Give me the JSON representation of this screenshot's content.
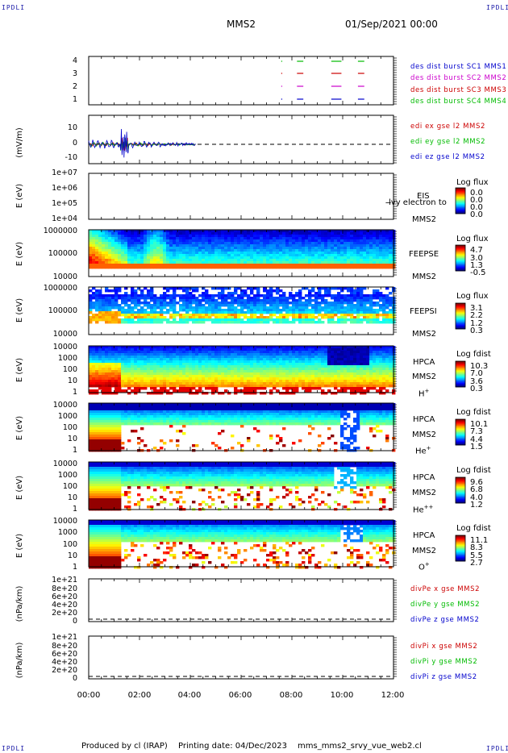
{
  "header": {
    "corner_tl": "IPDLI",
    "corner_tr": "IPDLI",
    "corner_bl": "IPDLI",
    "corner_br": "IPDLI",
    "spacecraft": "MMS2",
    "datetime": "01/Sep/2021 00:00"
  },
  "footer": {
    "produced": "Produced by cl (IRAP)",
    "printing": "Printing date: 04/Dec/2023",
    "file": "mms_mms2_srvy_vue_web2.cl"
  },
  "x_ticks": [
    "00:00",
    "02:00",
    "04:00",
    "06:00",
    "08:00",
    "10:00",
    "12:00"
  ],
  "panels": {
    "p1": {
      "ticks": [
        "4",
        "3",
        "2",
        "1"
      ],
      "legend": [
        {
          "text": "des dist burst SC1 MMS1",
          "color": "#0000cc"
        },
        {
          "text": "des dist burst SC2 MMS2",
          "color": "#cc00cc"
        },
        {
          "text": "des dist burst SC3 MMS3",
          "color": "#cc0000"
        },
        {
          "text": "des dist burst SC4 MMS4",
          "color": "#00bb00"
        }
      ]
    },
    "p2": {
      "ylabel": "(mV/m)",
      "ticks": [
        "10",
        "0",
        "-10"
      ],
      "legend": [
        {
          "text": "edi ex gse l2 MMS2",
          "color": "#cc0000"
        },
        {
          "text": "edi ey gse l2 MMS2",
          "color": "#00bb00"
        },
        {
          "text": "edi ez gse l2 MMS2",
          "color": "#0000cc"
        }
      ]
    },
    "p3": {
      "ylabel": "E (eV)",
      "ticks": [
        "1e+07",
        "1e+06",
        "1e+05",
        "1e+04"
      ],
      "inst1": "EIS",
      "inst2": "MMS2",
      "overlay": "l̶vy electron to",
      "cb_title": "Log flux",
      "cb_vals": [
        "0.0",
        "0.0",
        "0.0",
        "0.0"
      ]
    },
    "p4": {
      "ylabel": "E (eV)",
      "ticks": [
        "1000000",
        "100000",
        "10000"
      ],
      "inst1": "FEEPSE",
      "inst2": "MMS2",
      "cb_title": "Log flux",
      "cb_vals": [
        "4.7",
        "3.0",
        "1.3",
        "-0.5"
      ]
    },
    "p5": {
      "ylabel": "E (eV)",
      "ticks": [
        "1000000",
        "100000",
        "10000"
      ],
      "inst1": "FEEPSI",
      "inst2": "MMS2",
      "cb_title": "Log flux",
      "cb_vals": [
        "3.1",
        "2.2",
        "1.2",
        "0.3"
      ]
    },
    "p6": {
      "ylabel": "E (eV)",
      "ticks": [
        "10000",
        "1000",
        "100",
        "10",
        "1"
      ],
      "inst1": "HPCA",
      "inst2": "MMS2",
      "species": "H",
      "charge": "+",
      "cb_title": "Log fdist",
      "cb_vals": [
        "10.3",
        "7.0",
        "3.6",
        "0.3"
      ]
    },
    "p7": {
      "ylabel": "E (eV)",
      "ticks": [
        "10000",
        "1000",
        "100",
        "10",
        "1"
      ],
      "inst1": "HPCA",
      "inst2": "MMS2",
      "species": "He",
      "charge": "+",
      "cb_title": "Log fdist",
      "cb_vals": [
        "10.1",
        "7.3",
        "4.4",
        "1.5"
      ]
    },
    "p8": {
      "ylabel": "E (eV)",
      "ticks": [
        "10000",
        "1000",
        "100",
        "10",
        "1"
      ],
      "inst1": "HPCA",
      "inst2": "MMS2",
      "species": "He",
      "charge": "++",
      "cb_title": "Log fdist",
      "cb_vals": [
        "9.6",
        "6.8",
        "4.0",
        "1.2"
      ]
    },
    "p9": {
      "ylabel": "E (eV)",
      "ticks": [
        "10000",
        "1000",
        "100",
        "10",
        "1"
      ],
      "inst1": "HPCA",
      "inst2": "MMS2",
      "species": "O",
      "charge": "+",
      "cb_title": "Log fdist",
      "cb_vals": [
        "11.1",
        "8.3",
        "5.5",
        "2.7"
      ]
    },
    "p10": {
      "ylabel": "(nPa/km)",
      "ticks": [
        "1e+21",
        "8e+20",
        "6e+20",
        "4e+20",
        "2e+20",
        "0"
      ],
      "legend": [
        {
          "text": "divPe x gse MMS2",
          "color": "#cc0000"
        },
        {
          "text": "divPe y gse MMS2",
          "color": "#00bb00"
        },
        {
          "text": "divPe z gse MMS2",
          "color": "#0000cc"
        }
      ]
    },
    "p11": {
      "ylabel": "(nPa/km)",
      "ticks": [
        "1e+21",
        "8e+20",
        "6e+20",
        "4e+20",
        "2e+20",
        "0"
      ],
      "legend": [
        {
          "text": "divPi x gse MMS2",
          "color": "#cc0000"
        },
        {
          "text": "divPi y gse MMS2",
          "color": "#00bb00"
        },
        {
          "text": "divPi z gse MMS2",
          "color": "#0000cc"
        }
      ]
    }
  },
  "chart_data": {
    "type": "heatmap",
    "x_range": [
      "00:00",
      "12:00"
    ],
    "burst_intervals": [
      {
        "sc": 1,
        "start": "07:35",
        "end": "07:35"
      },
      {
        "sc": 1,
        "start": "08:15",
        "end": "08:25"
      },
      {
        "sc": 1,
        "start": "09:55",
        "end": "10:10"
      },
      {
        "sc": 1,
        "start": "10:40",
        "end": "10:55"
      }
    ],
    "edi_e_ylim": [
      -15,
      15
    ],
    "edi_e_data_window": [
      "00:00",
      "04:15"
    ],
    "feeps_electron_cutoff_eV": 30000,
    "eis_ylim_eV": [
      10000,
      10000000
    ],
    "feeps_ylim_eV": [
      10000,
      1000000
    ],
    "hpca_ylim_eV": [
      1,
      10000
    ]
  }
}
